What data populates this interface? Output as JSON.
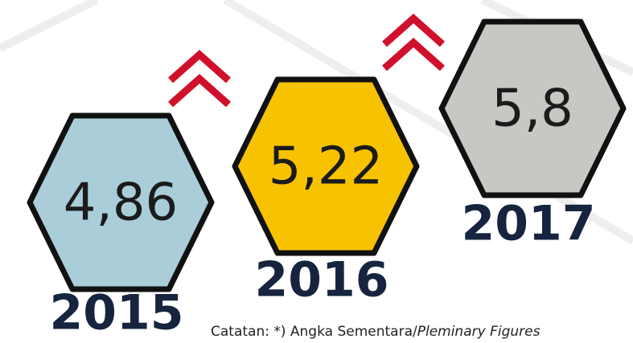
{
  "items": [
    {
      "year": "2015",
      "value": "4,86",
      "color": "#a9cdd9"
    },
    {
      "year": "2016",
      "value": "5,22",
      "color": "#f7c300"
    },
    {
      "year": "2017",
      "value": "5,8",
      "color": "#c8c7c3"
    }
  ],
  "note": {
    "text": "Catatan: *) Angka Sementara/",
    "italic": "Pleminary Figures"
  }
}
